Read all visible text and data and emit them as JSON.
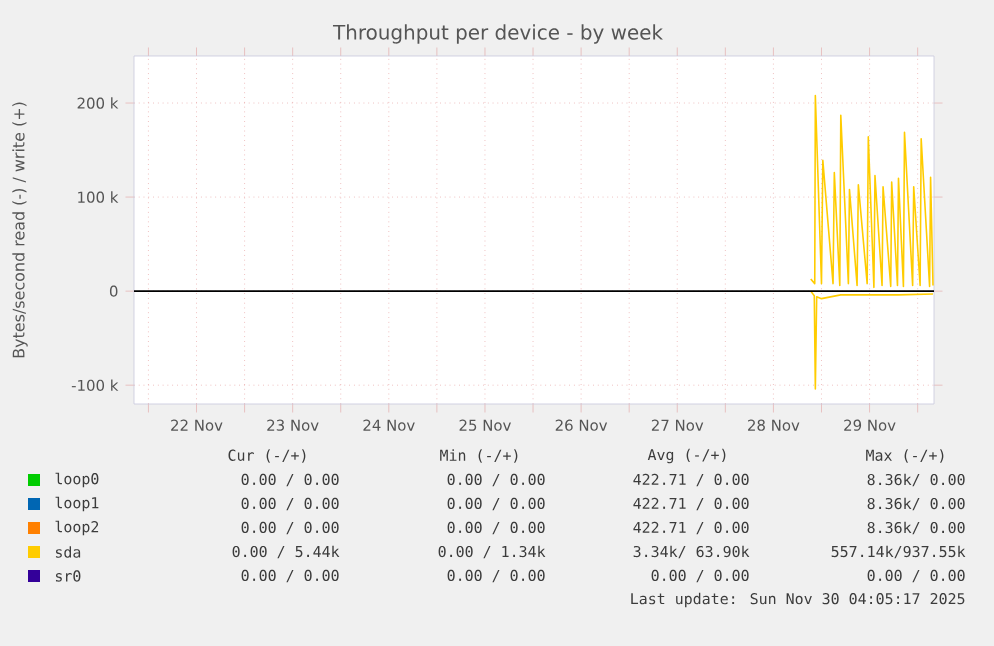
{
  "chart_data": {
    "type": "line",
    "title": "Throughput per device - by week",
    "ylabel": "Bytes/second read (-) / write (+)",
    "xlim": [
      "2025-11-21T20:24",
      "2025-11-30T04:05"
    ],
    "ylim": [
      -120000,
      250000
    ],
    "xticks": [
      {
        "value": "2025-11-22",
        "label": null
      },
      {
        "value": "2025-11-22T12:00",
        "label": "22 Nov"
      },
      {
        "value": "2025-11-23",
        "label": null
      },
      {
        "value": "2025-11-23T12:00",
        "label": "23 Nov"
      },
      {
        "value": "2025-11-24",
        "label": null
      },
      {
        "value": "2025-11-24T12:00",
        "label": "24 Nov"
      },
      {
        "value": "2025-11-25",
        "label": null
      },
      {
        "value": "2025-11-25T12:00",
        "label": "25 Nov"
      },
      {
        "value": "2025-11-26",
        "label": null
      },
      {
        "value": "2025-11-26T12:00",
        "label": "26 Nov"
      },
      {
        "value": "2025-11-27",
        "label": null
      },
      {
        "value": "2025-11-27T12:00",
        "label": "27 Nov"
      },
      {
        "value": "2025-11-28",
        "label": null
      },
      {
        "value": "2025-11-28T12:00",
        "label": "28 Nov"
      },
      {
        "value": "2025-11-29",
        "label": null
      },
      {
        "value": "2025-11-29T12:00",
        "label": "29 Nov"
      },
      {
        "value": "2025-11-30",
        "label": null
      }
    ],
    "yticks": [
      {
        "value": -100000,
        "label": "-100 k"
      },
      {
        "value": 0,
        "label": "0"
      },
      {
        "value": 100000,
        "label": "100 k"
      },
      {
        "value": 200000,
        "label": "200 k"
      }
    ],
    "grid": true,
    "legend": "bottom",
    "marker": "none",
    "line_style": "solid",
    "series": [
      {
        "name": "loop0",
        "color": "#00cc00"
      },
      {
        "name": "loop1",
        "color": "#0066b3"
      },
      {
        "name": "loop2",
        "color": "#ff8000"
      },
      {
        "name": "sda",
        "color": "#ffcc00",
        "x": [
          "2025-11-28T21:19",
          "2025-11-28T22:19",
          "2025-11-28T22:28",
          "2025-11-29T00:00",
          "2025-11-29T00:20",
          "2025-11-29T02:53",
          "2025-11-29T03:12",
          "2025-11-29T04:34",
          "2025-11-29T04:49",
          "2025-11-29T06:43",
          "2025-11-29T06:59",
          "2025-11-29T08:53",
          "2025-11-29T09:12",
          "2025-11-29T11:24",
          "2025-11-29T11:41",
          "2025-11-29T13:05",
          "2025-11-29T13:21",
          "2025-11-29T15:07",
          "2025-11-29T15:22",
          "2025-11-29T17:17",
          "2025-11-29T17:31",
          "2025-11-29T18:58",
          "2025-11-29T19:13",
          "2025-11-29T20:27",
          "2025-11-29T20:43",
          "2025-11-29T22:45",
          "2025-11-29T23:01",
          "2025-11-30T00:37",
          "2025-11-30T00:53",
          "2025-11-30T02:59",
          "2025-11-30T03:14",
          "2025-11-30T03:50"
        ],
        "values": [
          13000,
          8000,
          208000,
          8000,
          139000,
          8000,
          126000,
          6000,
          187000,
          8000,
          108000,
          6000,
          113000,
          8000,
          164000,
          4000,
          123000,
          6000,
          111000,
          5000,
          116000,
          6000,
          120000,
          5000,
          169000,
          6000,
          111000,
          6000,
          162000,
          5000,
          121000,
          6000
        ]
      },
      {
        "color": "#ffcc00",
        "x": [
          "2025-11-28T21:19",
          "2025-11-28T22:12",
          "2025-11-28T22:28",
          "2025-11-28T22:48",
          "2025-11-29T00:00",
          "2025-11-29T04:48",
          "2025-11-29T12:00",
          "2025-11-29T19:12",
          "2025-11-30T03:50"
        ],
        "values": [
          0,
          -5000,
          -104000,
          -6000,
          -8000,
          -4000,
          -4000,
          -4000,
          -3000
        ]
      },
      {
        "name": "sr0",
        "color": "#330099"
      }
    ],
    "ref_lines": [
      {
        "axis": "y",
        "value": 0,
        "color": "#000000"
      }
    ],
    "annotations": [
      "Cur (-/+)",
      "Min (-/+)",
      "Avg (-/+)",
      "Max (-/+)",
      "0.00 / 0.00",
      "0.00 / 0.00",
      "422.71 / 0.00",
      "8.36k/ 0.00",
      "0.00 / 0.00",
      "0.00 / 0.00",
      "422.71 / 0.00",
      "8.36k/ 0.00",
      "0.00 / 0.00",
      "0.00 / 0.00",
      "422.71 / 0.00",
      "8.36k/ 0.00",
      "0.00 / 5.44k",
      "0.00 / 1.34k",
      "3.34k/ 63.90k",
      "557.14k/937.55k",
      "0.00 / 0.00",
      "0.00 / 0.00",
      "0.00 / 0.00",
      "0.00 / 0.00",
      "Last update: Sun Nov 30 04:05:17 2025"
    ]
  }
}
